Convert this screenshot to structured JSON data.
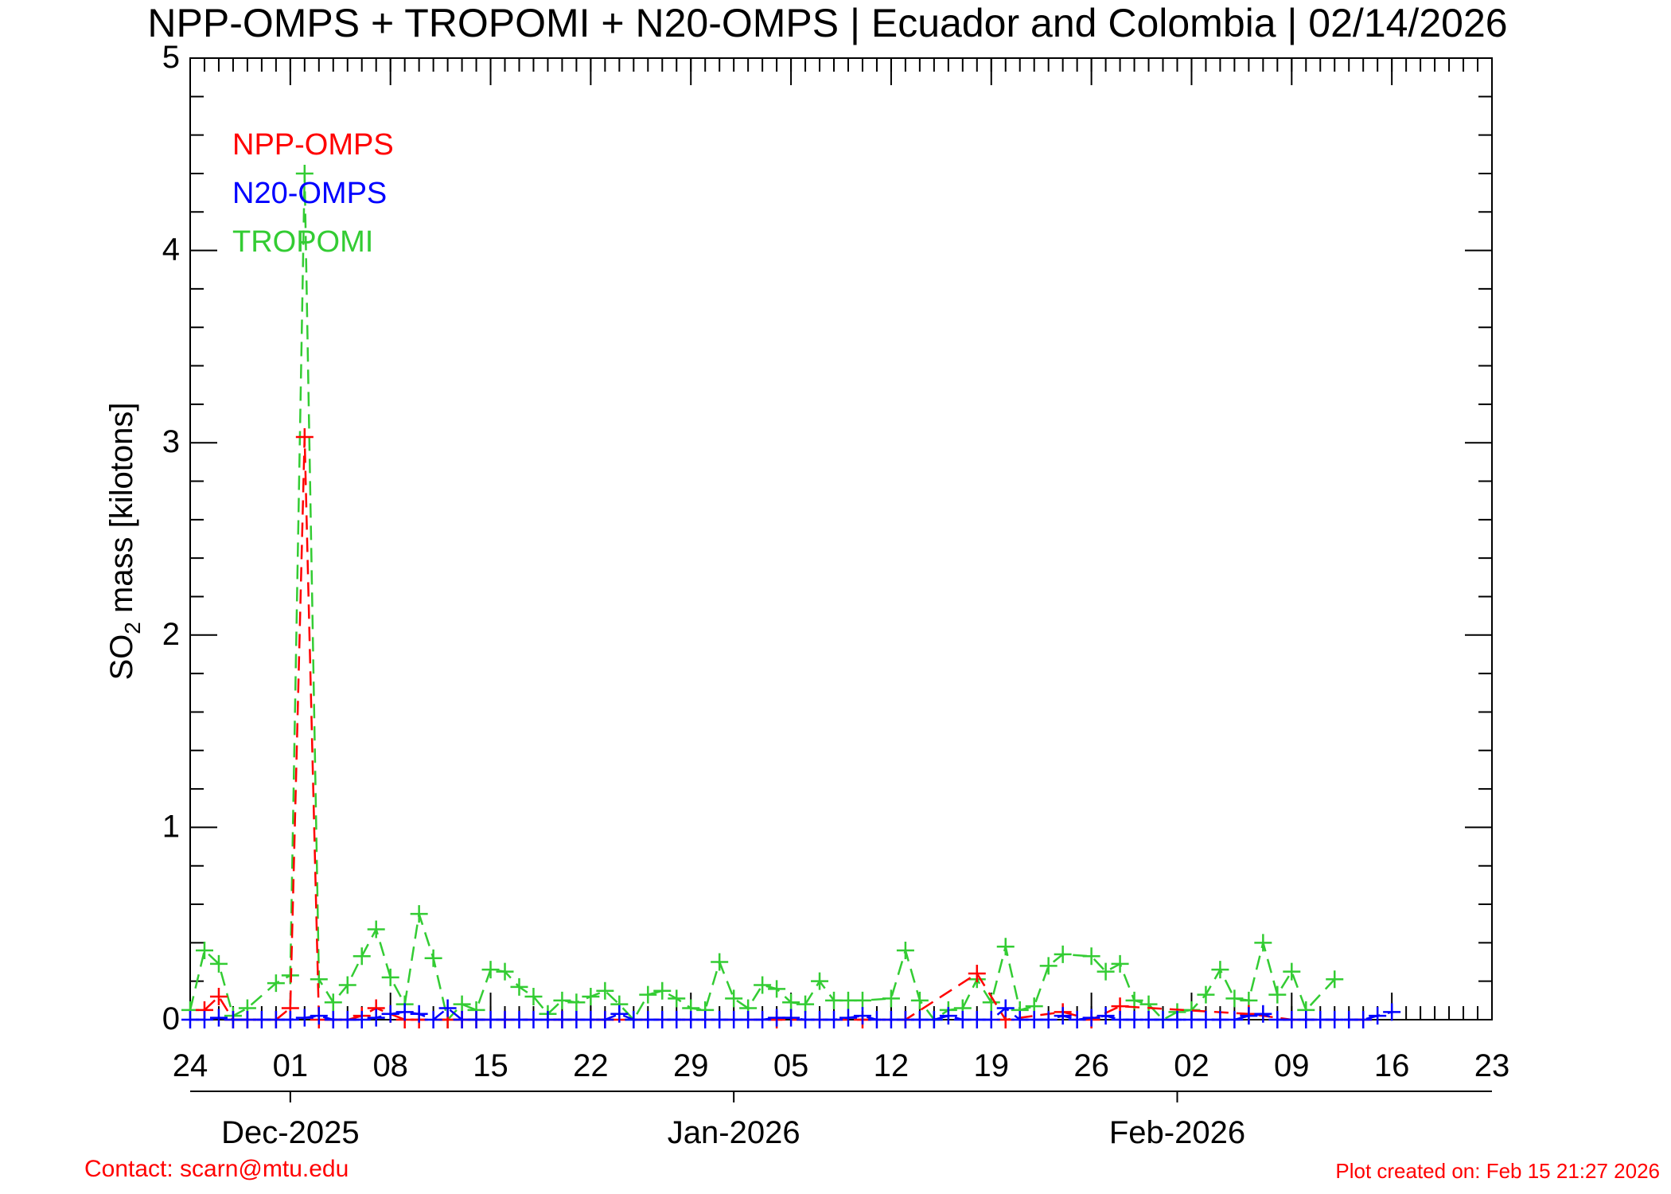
{
  "colors": {
    "npp": "#ff0000",
    "n20": "#0000ff",
    "tropomi": "#33cc33",
    "axis": "#000000",
    "footer": "#ff0000"
  },
  "footer": {
    "contact": "Contact: scarn@mtu.edu",
    "created": "Plot created on: Feb 15 21:27 2026"
  },
  "chart_data": {
    "type": "line",
    "title": "NPP-OMPS + TROPOMI + N20-OMPS | Ecuador and Colombia | 02/14/2026",
    "ylabel_main": "SO",
    "ylabel_sub": "2",
    "ylabel_rest": " mass [kilotons]",
    "ylim": [
      0,
      5
    ],
    "y_ticks": [
      "0",
      "1",
      "2",
      "3",
      "4",
      "5"
    ],
    "xlim": [
      "2025-11-24",
      "2026-02-23"
    ],
    "x_ticks": [
      {
        "date": "2025-11-24",
        "label": "24"
      },
      {
        "date": "2025-12-01",
        "label": "01"
      },
      {
        "date": "2025-12-08",
        "label": "08"
      },
      {
        "date": "2025-12-15",
        "label": "15"
      },
      {
        "date": "2025-12-22",
        "label": "22"
      },
      {
        "date": "2025-12-29",
        "label": "29"
      },
      {
        "date": "2026-01-05",
        "label": "05"
      },
      {
        "date": "2026-01-12",
        "label": "12"
      },
      {
        "date": "2026-01-19",
        "label": "19"
      },
      {
        "date": "2026-01-26",
        "label": "26"
      },
      {
        "date": "2026-02-02",
        "label": "02"
      },
      {
        "date": "2026-02-09",
        "label": "09"
      },
      {
        "date": "2026-02-16",
        "label": "16"
      },
      {
        "date": "2026-02-23",
        "label": "23"
      }
    ],
    "month_ticks": [
      {
        "date": "2025-12-01",
        "label": "Dec-2025"
      },
      {
        "date": "2026-01-01",
        "label": "Jan-2026"
      },
      {
        "date": "2026-02-01",
        "label": "Feb-2026"
      }
    ],
    "legend_position": "top-left",
    "series": [
      {
        "name": "NPP-OMPS",
        "color": "#ff0000",
        "points": [
          [
            "2025-11-25",
            0.05
          ],
          [
            "2025-11-26",
            0.12
          ],
          [
            "2025-11-27",
            0.0
          ],
          [
            "2025-11-28",
            0.0
          ],
          [
            "2025-11-30",
            0.0
          ],
          [
            "2025-12-01",
            0.06
          ],
          [
            "2025-12-02",
            3.03
          ],
          [
            "2025-12-03",
            0.0
          ],
          [
            "2025-12-04",
            0.0
          ],
          [
            "2025-12-05",
            0.0
          ],
          [
            "2025-12-06",
            0.02
          ],
          [
            "2025-12-07",
            0.06
          ],
          [
            "2025-12-08",
            0.03
          ],
          [
            "2025-12-09",
            0.0
          ],
          [
            "2025-12-10",
            0.0
          ],
          [
            "2025-12-12",
            0.0
          ],
          [
            "2025-12-13",
            0.0
          ],
          [
            "2025-12-14",
            0.0
          ],
          [
            "2025-12-16",
            0.0
          ],
          [
            "2025-12-20",
            0.0
          ],
          [
            "2025-12-23",
            0.0
          ],
          [
            "2026-01-04",
            0.0
          ],
          [
            "2026-01-10",
            0.0
          ],
          [
            "2026-01-13",
            0.0
          ],
          [
            "2026-01-18",
            0.24
          ],
          [
            "2026-01-20",
            0.0
          ],
          [
            "2026-01-24",
            0.04
          ],
          [
            "2026-01-26",
            0.0
          ],
          [
            "2026-01-28",
            0.07
          ],
          [
            "2026-02-06",
            0.03
          ],
          [
            "2026-02-09",
            0.0
          ],
          [
            "2026-02-14",
            0.0
          ]
        ]
      },
      {
        "name": "N20-OMPS",
        "color": "#0000ff",
        "points": [
          [
            "2025-11-24",
            0.0
          ],
          [
            "2025-11-25",
            0.0
          ],
          [
            "2025-11-26",
            0.01
          ],
          [
            "2025-11-27",
            0.0
          ],
          [
            "2025-11-28",
            0.0
          ],
          [
            "2025-11-29",
            0.0
          ],
          [
            "2025-11-30",
            0.0
          ],
          [
            "2025-12-01",
            0.0
          ],
          [
            "2025-12-02",
            0.01
          ],
          [
            "2025-12-03",
            0.02
          ],
          [
            "2025-12-04",
            0.0
          ],
          [
            "2025-12-05",
            0.0
          ],
          [
            "2025-12-06",
            0.0
          ],
          [
            "2025-12-07",
            0.01
          ],
          [
            "2025-12-08",
            0.03
          ],
          [
            "2025-12-09",
            0.04
          ],
          [
            "2025-12-10",
            0.03
          ],
          [
            "2025-12-11",
            0.0
          ],
          [
            "2025-12-12",
            0.06
          ],
          [
            "2025-12-13",
            0.0
          ],
          [
            "2025-12-14",
            0.0
          ],
          [
            "2025-12-15",
            0.0
          ],
          [
            "2025-12-16",
            0.0
          ],
          [
            "2025-12-17",
            0.0
          ],
          [
            "2025-12-18",
            0.0
          ],
          [
            "2025-12-19",
            0.0
          ],
          [
            "2025-12-20",
            0.0
          ],
          [
            "2025-12-21",
            0.0
          ],
          [
            "2025-12-22",
            0.0
          ],
          [
            "2025-12-23",
            0.0
          ],
          [
            "2025-12-24",
            0.03
          ],
          [
            "2025-12-25",
            0.0
          ],
          [
            "2025-12-26",
            0.0
          ],
          [
            "2025-12-27",
            0.0
          ],
          [
            "2025-12-28",
            0.0
          ],
          [
            "2025-12-29",
            0.0
          ],
          [
            "2025-12-30",
            0.0
          ],
          [
            "2025-12-31",
            0.0
          ],
          [
            "2026-01-01",
            0.0
          ],
          [
            "2026-01-02",
            0.0
          ],
          [
            "2026-01-03",
            0.0
          ],
          [
            "2026-01-04",
            0.01
          ],
          [
            "2026-01-05",
            0.01
          ],
          [
            "2026-01-06",
            0.0
          ],
          [
            "2026-01-07",
            0.0
          ],
          [
            "2026-01-08",
            0.0
          ],
          [
            "2026-01-09",
            0.01
          ],
          [
            "2026-01-10",
            0.02
          ],
          [
            "2026-01-11",
            0.0
          ],
          [
            "2026-01-12",
            0.0
          ],
          [
            "2026-01-13",
            0.0
          ],
          [
            "2026-01-14",
            0.0
          ],
          [
            "2026-01-15",
            0.0
          ],
          [
            "2026-01-16",
            0.02
          ],
          [
            "2026-01-17",
            0.0
          ],
          [
            "2026-01-18",
            0.0
          ],
          [
            "2026-01-19",
            0.0
          ],
          [
            "2026-01-20",
            0.06
          ],
          [
            "2026-01-21",
            0.0
          ],
          [
            "2026-01-22",
            0.0
          ],
          [
            "2026-01-23",
            0.0
          ],
          [
            "2026-01-24",
            0.02
          ],
          [
            "2026-01-25",
            0.0
          ],
          [
            "2026-01-26",
            0.01
          ],
          [
            "2026-01-27",
            0.02
          ],
          [
            "2026-01-28",
            0.0
          ],
          [
            "2026-01-29",
            0.0
          ],
          [
            "2026-01-30",
            0.0
          ],
          [
            "2026-01-31",
            0.0
          ],
          [
            "2026-02-01",
            0.0
          ],
          [
            "2026-02-02",
            0.0
          ],
          [
            "2026-02-03",
            0.0
          ],
          [
            "2026-02-04",
            0.0
          ],
          [
            "2026-02-05",
            0.0
          ],
          [
            "2026-02-06",
            0.02
          ],
          [
            "2026-02-07",
            0.03
          ],
          [
            "2026-02-08",
            0.0
          ],
          [
            "2026-02-09",
            0.0
          ],
          [
            "2026-02-10",
            0.0
          ],
          [
            "2026-02-11",
            0.0
          ],
          [
            "2026-02-12",
            0.0
          ],
          [
            "2026-02-13",
            0.0
          ],
          [
            "2026-02-14",
            0.0
          ],
          [
            "2026-02-15",
            0.02
          ],
          [
            "2026-02-16",
            0.04
          ]
        ]
      },
      {
        "name": "TROPOMI",
        "color": "#33cc33",
        "points": [
          [
            "2025-11-24",
            0.05
          ],
          [
            "2025-11-25",
            0.36
          ],
          [
            "2025-11-26",
            0.29
          ],
          [
            "2025-11-27",
            0.02
          ],
          [
            "2025-11-28",
            0.06
          ],
          [
            "2025-11-30",
            0.19
          ],
          [
            "2025-12-01",
            0.23
          ],
          [
            "2025-12-02",
            4.4
          ],
          [
            "2025-12-03",
            0.21
          ],
          [
            "2025-12-04",
            0.09
          ],
          [
            "2025-12-05",
            0.18
          ],
          [
            "2025-12-06",
            0.33
          ],
          [
            "2025-12-07",
            0.47
          ],
          [
            "2025-12-08",
            0.22
          ],
          [
            "2025-12-09",
            0.08
          ],
          [
            "2025-12-10",
            0.55
          ],
          [
            "2025-12-11",
            0.32
          ],
          [
            "2025-12-12",
            0.0
          ],
          [
            "2025-12-13",
            0.08
          ],
          [
            "2025-12-14",
            0.05
          ],
          [
            "2025-12-15",
            0.26
          ],
          [
            "2025-12-16",
            0.25
          ],
          [
            "2025-12-17",
            0.17
          ],
          [
            "2025-12-18",
            0.12
          ],
          [
            "2025-12-19",
            0.03
          ],
          [
            "2025-12-20",
            0.1
          ],
          [
            "2025-12-21",
            0.09
          ],
          [
            "2025-12-22",
            0.12
          ],
          [
            "2025-12-23",
            0.15
          ],
          [
            "2025-12-24",
            0.08
          ],
          [
            "2025-12-25",
            0.0
          ],
          [
            "2025-12-26",
            0.13
          ],
          [
            "2025-12-27",
            0.15
          ],
          [
            "2025-12-28",
            0.11
          ],
          [
            "2025-12-29",
            0.06
          ],
          [
            "2025-12-30",
            0.05
          ],
          [
            "2025-12-31",
            0.3
          ],
          [
            "2026-01-01",
            0.11
          ],
          [
            "2026-01-02",
            0.06
          ],
          [
            "2026-01-03",
            0.18
          ],
          [
            "2026-01-04",
            0.16
          ],
          [
            "2026-01-05",
            0.09
          ],
          [
            "2026-01-06",
            0.08
          ],
          [
            "2026-01-07",
            0.2
          ],
          [
            "2026-01-08",
            0.1
          ],
          [
            "2026-01-09",
            0.1
          ],
          [
            "2026-01-10",
            0.1
          ],
          [
            "2026-01-12",
            0.11
          ],
          [
            "2026-01-13",
            0.36
          ],
          [
            "2026-01-14",
            0.1
          ],
          [
            "2026-01-15",
            0.0
          ],
          [
            "2026-01-16",
            0.05
          ],
          [
            "2026-01-17",
            0.06
          ],
          [
            "2026-01-18",
            0.21
          ],
          [
            "2026-01-19",
            0.09
          ],
          [
            "2026-01-20",
            0.38
          ],
          [
            "2026-01-21",
            0.05
          ],
          [
            "2026-01-22",
            0.07
          ],
          [
            "2026-01-23",
            0.28
          ],
          [
            "2026-01-24",
            0.34
          ],
          [
            "2026-01-26",
            0.33
          ],
          [
            "2026-01-27",
            0.25
          ],
          [
            "2026-01-28",
            0.29
          ],
          [
            "2026-01-29",
            0.1
          ],
          [
            "2026-01-30",
            0.08
          ],
          [
            "2026-01-31",
            0.0
          ],
          [
            "2026-02-01",
            0.04
          ],
          [
            "2026-02-02",
            0.05
          ],
          [
            "2026-02-03",
            0.13
          ],
          [
            "2026-02-04",
            0.26
          ],
          [
            "2026-02-05",
            0.11
          ],
          [
            "2026-02-06",
            0.1
          ],
          [
            "2026-02-07",
            0.4
          ],
          [
            "2026-02-08",
            0.13
          ],
          [
            "2026-02-09",
            0.25
          ],
          [
            "2026-02-10",
            0.05
          ],
          [
            "2026-02-12",
            0.21
          ]
        ]
      }
    ]
  }
}
